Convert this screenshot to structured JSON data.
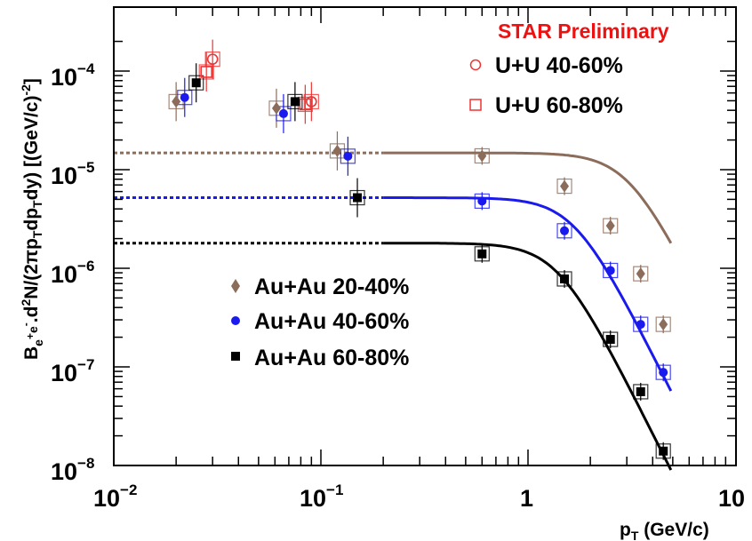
{
  "chart_data": {
    "type": "scatter",
    "title": "",
    "annotation": "STAR Preliminary",
    "xlabel": "p_T (GeV/c)",
    "ylabel": "B_{e+e-}.d^2N/(2πp_T dp_T dy) [(GeV/c)^-2]",
    "xscale": "log",
    "yscale": "log",
    "xlim": [
      0.01,
      10
    ],
    "ylim": [
      1e-08,
      0.0003
    ],
    "x_tick_labels": [
      "10^{-2}",
      "10^{-1}",
      "1",
      "10"
    ],
    "y_tick_labels": [
      "10^{-8}",
      "10^{-7}",
      "10^{-6}",
      "10^{-5}",
      "10^{-4}"
    ],
    "legend_placement": [
      "top-right",
      "center-left"
    ],
    "series": [
      {
        "name": "U+U 40-60%",
        "marker": "open-circle",
        "color": "#ee3333",
        "points": [
          {
            "x": 0.03,
            "y": 0.000132
          },
          {
            "x": 0.09,
            "y": 4.9e-05
          }
        ]
      },
      {
        "name": "U+U 60-80%",
        "marker": "open-square",
        "color": "#ee3333",
        "points": [
          {
            "x": 0.028,
            "y": 9.8e-05
          },
          {
            "x": 0.084,
            "y": 4.6e-05
          }
        ]
      },
      {
        "name": "Au+Au 20-40%",
        "marker": "diamond",
        "color": "#8c6c5a",
        "points": [
          {
            "x": 0.02,
            "y": 4.9e-05
          },
          {
            "x": 0.061,
            "y": 4.2e-05
          },
          {
            "x": 0.12,
            "y": 1.55e-05
          },
          {
            "x": 0.6,
            "y": 1.38e-05
          },
          {
            "x": 1.5,
            "y": 6.8e-06
          },
          {
            "x": 2.5,
            "y": 2.7e-06
          },
          {
            "x": 3.5,
            "y": 8.8e-07
          },
          {
            "x": 4.5,
            "y": 2.7e-07
          }
        ],
        "fit": {
          "plateau": 1.48e-05,
          "dashed_below": 0.2,
          "x_end": 4.9,
          "y_end": 1.8e-06
        }
      },
      {
        "name": "Au+Au 40-60%",
        "marker": "filled-circle",
        "color": "#1a1aee",
        "points": [
          {
            "x": 0.022,
            "y": 5.4e-05
          },
          {
            "x": 0.066,
            "y": 3.7e-05
          },
          {
            "x": 0.135,
            "y": 1.37e-05
          },
          {
            "x": 0.6,
            "y": 4.8e-06
          },
          {
            "x": 1.5,
            "y": 2.4e-06
          },
          {
            "x": 2.5,
            "y": 9.5e-07
          },
          {
            "x": 3.5,
            "y": 2.7e-07
          },
          {
            "x": 4.5,
            "y": 8.8e-08
          }
        ],
        "fit": {
          "plateau": 5.2e-06,
          "dashed_below": 0.2,
          "x_end": 4.9,
          "y_end": 5.7e-08
        }
      },
      {
        "name": "Au+Au 60-80%",
        "marker": "filled-square",
        "color": "#000000",
        "points": [
          {
            "x": 0.025,
            "y": 7.6e-05
          },
          {
            "x": 0.075,
            "y": 4.9e-05
          },
          {
            "x": 0.15,
            "y": 5.2e-06
          },
          {
            "x": 0.6,
            "y": 1.4e-06
          },
          {
            "x": 1.5,
            "y": 7.8e-07
          },
          {
            "x": 2.5,
            "y": 1.9e-07
          },
          {
            "x": 3.5,
            "y": 5.6e-08
          },
          {
            "x": 4.5,
            "y": 1.4e-08
          }
        ],
        "fit": {
          "plateau": 1.8e-06,
          "dashed_below": 0.2,
          "x_end": 4.9,
          "y_end": 9e-09
        }
      }
    ]
  },
  "colors": {
    "annotation": "#ee1111",
    "uu": "#ee3333",
    "auau_20_40": "#8c6c5a",
    "auau_40_60": "#1a1aee",
    "auau_60_80": "#000000"
  }
}
